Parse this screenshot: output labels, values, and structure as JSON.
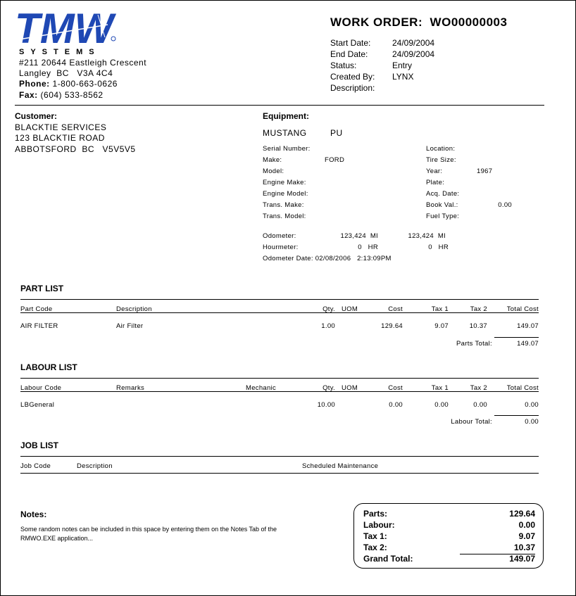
{
  "company": {
    "logo_text": "TMW",
    "logo_sub": "SYSTEMS",
    "address1": "#211 20644 Eastleigh Crescent",
    "address2": "Langley  BC   V3A 4C4",
    "phone_label": "Phone:",
    "phone": "1-800-663-0626",
    "fax_label": "Fax:",
    "fax": "(604) 533-8562",
    "brand_color": "#1f48b4"
  },
  "order": {
    "title": "WORK ORDER:  WO00000003",
    "fields": [
      {
        "label": "Start Date:",
        "value": "24/09/2004"
      },
      {
        "label": "End Date:",
        "value": "24/09/2004"
      },
      {
        "label": "Status:",
        "value": "Entry"
      },
      {
        "label": "Created By:",
        "value": "LYNX"
      },
      {
        "label": "Description:",
        "value": ""
      }
    ]
  },
  "customer": {
    "heading": "Customer:",
    "lines": [
      "BLACKTIE SERVICES",
      "123 BLACKTIE ROAD",
      "ABBOTSFORD  BC   V5V5V5"
    ]
  },
  "equipment": {
    "heading": "Equipment:",
    "unit": "MUSTANG",
    "type": "PU",
    "left": [
      {
        "label": "Serial Number:",
        "value": ""
      },
      {
        "label": "Make:",
        "value": "FORD"
      },
      {
        "label": "Model:",
        "value": ""
      },
      {
        "label": "Engine Make:",
        "value": ""
      },
      {
        "label": "Engine Model:",
        "value": ""
      },
      {
        "label": "Trans. Make:",
        "value": ""
      },
      {
        "label": "Trans. Model:",
        "value": ""
      }
    ],
    "right": [
      {
        "label": "Location:",
        "value": ""
      },
      {
        "label": "Tire Size:",
        "value": ""
      },
      {
        "label": "Year:",
        "value": "1967"
      },
      {
        "label": "Plate:",
        "value": ""
      },
      {
        "label": "Acq. Date:",
        "value": ""
      },
      {
        "label": "Book Val.:",
        "value": "0.00"
      },
      {
        "label": "Fuel Type:",
        "value": ""
      }
    ],
    "odometer_label": "Odometer:",
    "odometer1": "123,424  MI",
    "odometer2": "123,424  MI",
    "hourmeter_label": "Hourmeter:",
    "hourmeter1": "0   HR",
    "hourmeter2": "0   HR",
    "odometer_date": "Odometer Date: 02/08/2006   2:13:09PM"
  },
  "parts": {
    "title": "PART LIST",
    "headers": [
      "Part Code",
      "Description",
      "Qty.",
      "UOM",
      "Cost",
      "Tax 1",
      "Tax 2",
      "Total Cost"
    ],
    "rows": [
      [
        "AIR FILTER",
        "Air Filter",
        "1.00",
        "",
        "129.64",
        "9.07",
        "10.37",
        "149.07"
      ]
    ],
    "total_label": "Parts Total:",
    "total": "149.07"
  },
  "labour": {
    "title": "LABOUR LIST",
    "headers": [
      "Labour Code",
      "Remarks",
      "Mechanic",
      "Qty.",
      "UOM",
      "Cost",
      "Tax 1",
      "Tax 2",
      "Total Cost"
    ],
    "rows": [
      [
        "LBGeneral",
        "",
        "",
        "10.00",
        "",
        "0.00",
        "0.00",
        "0.00",
        "0.00"
      ]
    ],
    "total_label": "Labour Total:",
    "total": "0.00"
  },
  "jobs": {
    "title": "JOB LIST",
    "headers": [
      "Job Code",
      "Description",
      "Scheduled Maintenance"
    ]
  },
  "notes": {
    "heading": "Notes:",
    "line1": "Some random notes can be included in this space by entering them on the Notes Tab of the",
    "line2": "RMWO.EXE application..."
  },
  "totals": [
    {
      "label": "Parts:",
      "value": "129.64"
    },
    {
      "label": "Labour:",
      "value": "0.00"
    },
    {
      "label": "Tax 1:",
      "value": "9.07"
    },
    {
      "label": "Tax 2:",
      "value": "10.37"
    },
    {
      "label": "Grand Total:",
      "value": "149.07"
    }
  ]
}
